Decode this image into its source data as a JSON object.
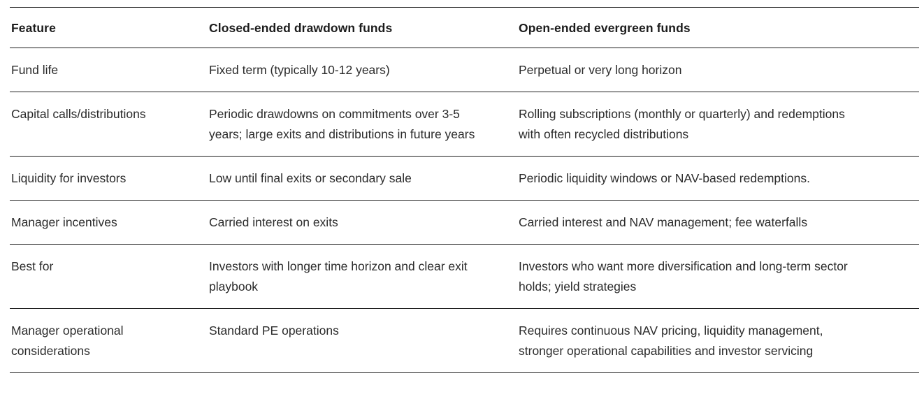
{
  "table": {
    "headers": {
      "feature": "Feature",
      "closed": "Closed-ended drawdown funds",
      "open": "Open-ended evergreen funds"
    },
    "rows": [
      {
        "feature": "Fund life",
        "closed": "Fixed term (typically 10-12 years)",
        "open": "Perpetual or very long horizon"
      },
      {
        "feature": "Capital calls/distributions",
        "closed": "Periodic drawdowns on commitments over 3-5 years; large exits and distributions in future years",
        "open": "Rolling subscriptions (monthly or quarterly) and redemptions with often recycled distributions"
      },
      {
        "feature": "Liquidity for investors",
        "closed": "Low until final exits or secondary sale",
        "open": "Periodic liquidity windows or NAV-based redemptions."
      },
      {
        "feature": "Manager incentives",
        "closed": "Carried interest on exits",
        "open": "Carried interest and NAV management; fee waterfalls"
      },
      {
        "feature": "Best for",
        "closed": "Investors with longer time horizon and clear exit playbook",
        "open": "Investors who want more diversification and long-term sector holds; yield strategies"
      },
      {
        "feature": "Manager operational considerations",
        "closed": "Standard PE operations",
        "open": "Requires continuous NAV pricing, liquidity management, stronger operational capabilities and investor servicing"
      }
    ],
    "colors": {
      "text": "#2b2b2b",
      "heading": "#1c1c1c",
      "rule": "#1f1f1f",
      "background": "#ffffff"
    }
  }
}
